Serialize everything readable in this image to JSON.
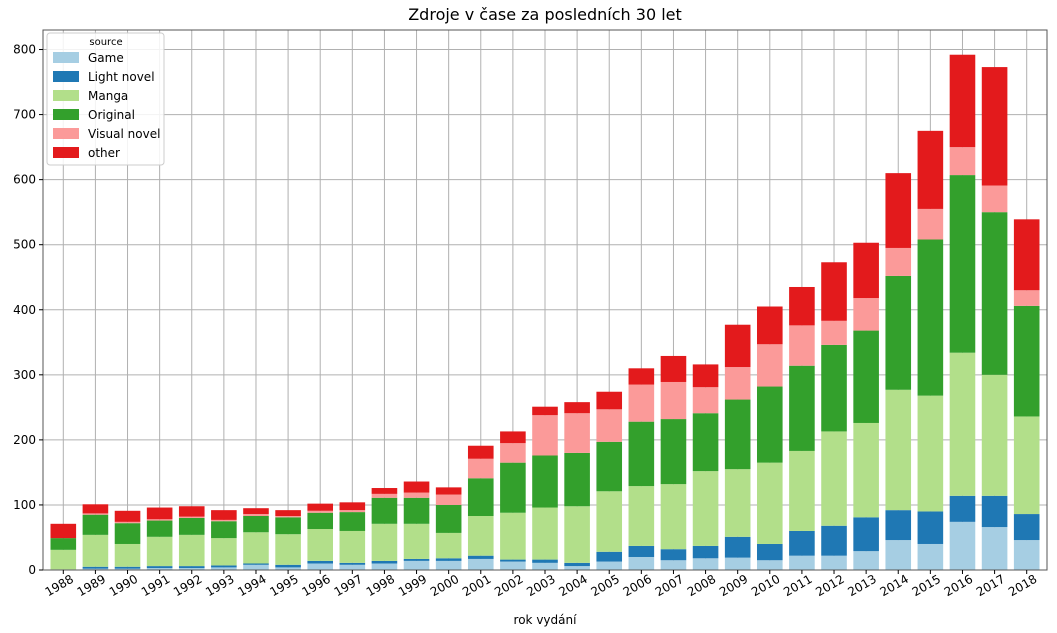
{
  "chart_data": {
    "type": "bar",
    "stacked": true,
    "title": "Zdroje v čase za posledních 30 let",
    "xlabel": "rok vydání",
    "ylabel": "",
    "ylim": [
      0,
      830
    ],
    "yticks": [
      0,
      100,
      200,
      300,
      400,
      500,
      600,
      700,
      800
    ],
    "grid": true,
    "legend": {
      "title": "source",
      "placement": "top-left"
    },
    "categories": [
      "1988",
      "1989",
      "1990",
      "1991",
      "1992",
      "1993",
      "1994",
      "1995",
      "1996",
      "1997",
      "1998",
      "1999",
      "2000",
      "2001",
      "2002",
      "2003",
      "2004",
      "2005",
      "2006",
      "2007",
      "2008",
      "2009",
      "2010",
      "2011",
      "2012",
      "2013",
      "2014",
      "2015",
      "2016",
      "2017",
      "2018"
    ],
    "series": [
      {
        "name": "Game",
        "color": "#a6cee3",
        "values": [
          1,
          2,
          2,
          3,
          3,
          4,
          8,
          4,
          10,
          8,
          10,
          14,
          14,
          17,
          13,
          11,
          6,
          13,
          20,
          15,
          18,
          19,
          15,
          22,
          22,
          29,
          46,
          40,
          74,
          66,
          46
        ]
      },
      {
        "name": "Light novel",
        "color": "#1f78b4",
        "values": [
          0,
          3,
          3,
          3,
          3,
          3,
          2,
          4,
          4,
          3,
          4,
          3,
          4,
          5,
          3,
          5,
          5,
          15,
          17,
          17,
          19,
          32,
          25,
          38,
          46,
          52,
          46,
          50,
          40,
          48,
          40
        ]
      },
      {
        "name": "Manga",
        "color": "#b2df8a",
        "values": [
          30,
          49,
          35,
          45,
          48,
          42,
          48,
          47,
          49,
          49,
          57,
          54,
          39,
          61,
          72,
          80,
          87,
          93,
          92,
          100,
          115,
          104,
          125,
          123,
          145,
          145,
          185,
          178,
          220,
          186,
          150
        ]
      },
      {
        "name": "Original",
        "color": "#33a02c",
        "values": [
          18,
          31,
          32,
          25,
          26,
          26,
          25,
          26,
          25,
          29,
          40,
          40,
          43,
          58,
          77,
          80,
          82,
          76,
          99,
          100,
          89,
          107,
          117,
          131,
          133,
          142,
          175,
          240,
          273,
          250,
          170
        ]
      },
      {
        "name": "Visual novel",
        "color": "#fb9a99",
        "values": [
          0,
          2,
          2,
          2,
          2,
          2,
          3,
          2,
          3,
          3,
          6,
          8,
          16,
          30,
          30,
          62,
          61,
          50,
          57,
          57,
          40,
          50,
          65,
          62,
          37,
          50,
          43,
          47,
          43,
          41,
          24
        ]
      },
      {
        "name": "other",
        "color": "#e31a1c",
        "values": [
          22,
          14,
          17,
          18,
          16,
          15,
          9,
          9,
          11,
          12,
          9,
          17,
          11,
          20,
          18,
          13,
          17,
          27,
          25,
          40,
          35,
          65,
          58,
          59,
          90,
          85,
          115,
          120,
          142,
          182,
          109
        ]
      }
    ]
  }
}
